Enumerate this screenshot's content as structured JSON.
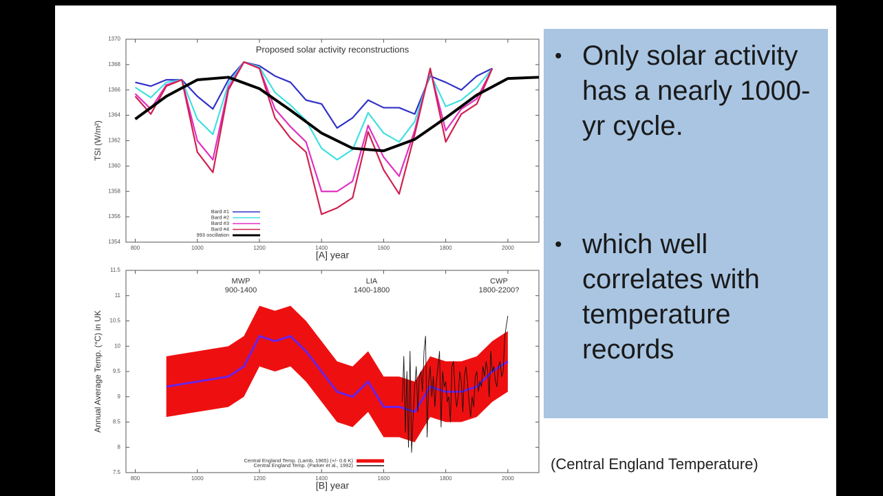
{
  "slide": {
    "bullets": [
      "Only solar activity has a nearly 1000-yr cycle.",
      "which well correlates with temperature records"
    ],
    "caption": "(Central England Temperature)"
  },
  "chart_data": [
    {
      "type": "line",
      "title": "Proposed solar activity reconstructions",
      "x_label": "[A]  year",
      "y_label": "TSI (W/m²)",
      "xlim": [
        770,
        2100
      ],
      "xticks": [
        800,
        1000,
        1200,
        1400,
        1600,
        1800,
        2000
      ],
      "ylim": [
        1354,
        1370
      ],
      "yticks": [
        1354,
        1356,
        1358,
        1360,
        1362,
        1364,
        1366,
        1368,
        1370
      ],
      "legend": "lower left",
      "series": [
        {
          "name": "Bard #1",
          "color": "#3030c8",
          "x": [
            800,
            850,
            900,
            950,
            1000,
            1050,
            1100,
            1150,
            1200,
            1250,
            1300,
            1350,
            1400,
            1450,
            1500,
            1550,
            1600,
            1650,
            1700,
            1750,
            1800,
            1850,
            1900,
            1950
          ],
          "values": [
            1366.6,
            1366.3,
            1366.8,
            1366.8,
            1365.5,
            1364.5,
            1366.8,
            1368.2,
            1367.9,
            1367.1,
            1366.6,
            1365.2,
            1364.9,
            1363.0,
            1363.8,
            1365.2,
            1364.6,
            1364.6,
            1364.1,
            1367.1,
            1366.6,
            1366.0,
            1367.1,
            1367.7
          ]
        },
        {
          "name": "Bard #2",
          "color": "#40e0e0",
          "x": [
            800,
            850,
            900,
            950,
            1000,
            1050,
            1100,
            1150,
            1200,
            1250,
            1300,
            1350,
            1400,
            1450,
            1500,
            1550,
            1600,
            1650,
            1700,
            1750,
            1800,
            1850,
            1900,
            1950
          ],
          "values": [
            1366.2,
            1365.4,
            1366.6,
            1366.8,
            1363.7,
            1362.5,
            1366.5,
            1368.2,
            1367.8,
            1365.8,
            1364.8,
            1363.6,
            1361.4,
            1360.5,
            1361.3,
            1364.2,
            1362.6,
            1361.9,
            1363.5,
            1367.3,
            1364.7,
            1365.2,
            1366.2,
            1367.7
          ]
        },
        {
          "name": "Bard #3",
          "color": "#e030c0",
          "x": [
            800,
            850,
            900,
            950,
            1000,
            1050,
            1100,
            1150,
            1200,
            1250,
            1300,
            1350,
            1400,
            1450,
            1500,
            1550,
            1600,
            1650,
            1700,
            1750,
            1800,
            1850,
            1900,
            1950
          ],
          "values": [
            1365.7,
            1364.5,
            1366.4,
            1366.8,
            1362.0,
            1360.5,
            1366.2,
            1368.2,
            1367.7,
            1364.5,
            1363.1,
            1361.9,
            1358.0,
            1358.0,
            1358.8,
            1363.2,
            1360.7,
            1359.2,
            1362.8,
            1367.6,
            1362.8,
            1364.5,
            1365.3,
            1367.7
          ]
        },
        {
          "name": "Bard #4",
          "color": "#d02050",
          "x": [
            800,
            850,
            900,
            950,
            1000,
            1050,
            1100,
            1150,
            1200,
            1250,
            1300,
            1350,
            1400,
            1450,
            1500,
            1550,
            1600,
            1650,
            1700,
            1750,
            1800,
            1850,
            1900,
            1950
          ],
          "values": [
            1365.5,
            1364.1,
            1366.3,
            1366.8,
            1361.1,
            1359.5,
            1366.0,
            1368.2,
            1367.7,
            1363.8,
            1362.2,
            1361.1,
            1356.2,
            1356.7,
            1357.5,
            1362.7,
            1359.7,
            1357.8,
            1362.5,
            1367.7,
            1361.9,
            1364.1,
            1364.9,
            1367.7
          ]
        },
        {
          "name": "993 oscillation",
          "color": "#000000",
          "x": [
            800,
            900,
            1000,
            1100,
            1200,
            1300,
            1400,
            1500,
            1600,
            1700,
            1800,
            1900,
            2000,
            2100
          ],
          "values": [
            1363.7,
            1365.5,
            1366.8,
            1367.0,
            1366.1,
            1364.4,
            1362.6,
            1361.4,
            1361.2,
            1362.1,
            1363.8,
            1365.6,
            1366.9,
            1367.0
          ]
        }
      ]
    },
    {
      "type": "line",
      "x_label": "[B]  year",
      "y_label": "Annual Average Temp.  (°C)  in UK",
      "xlim": [
        770,
        2100
      ],
      "xticks": [
        800,
        1000,
        1200,
        1400,
        1600,
        1800,
        2000
      ],
      "ylim": [
        7.5,
        11.5
      ],
      "yticks": [
        7.5,
        8,
        8.5,
        9,
        9.5,
        10,
        10.5,
        11,
        11.5
      ],
      "legend": "lower left",
      "annotations": [
        {
          "text": "MWP",
          "range": "900-1400"
        },
        {
          "text": "LIA",
          "range": "1400-1800"
        },
        {
          "text": "CWP",
          "range": "1800-2200?"
        }
      ],
      "series": [
        {
          "name": "Central England Temp. (Lamb, 1965) (+/- 0.6 K)",
          "color": "#ee1010",
          "line_color": "#6a22e8",
          "error": 0.6,
          "x": [
            900,
            1000,
            1100,
            1150,
            1200,
            1250,
            1300,
            1350,
            1400,
            1450,
            1500,
            1550,
            1600,
            1650,
            1700,
            1750,
            1800,
            1850,
            1900,
            1950,
            2000
          ],
          "values": [
            9.2,
            9.3,
            9.4,
            9.6,
            10.2,
            10.1,
            10.2,
            9.9,
            9.5,
            9.1,
            9.0,
            9.3,
            8.8,
            8.8,
            8.7,
            9.2,
            9.1,
            9.1,
            9.2,
            9.5,
            9.7
          ]
        },
        {
          "name": "Central England Temp. (Parker et al., 1992)",
          "color": "#111111",
          "x": [
            1660,
            1665,
            1670,
            1675,
            1680,
            1685,
            1690,
            1695,
            1700,
            1705,
            1710,
            1715,
            1720,
            1725,
            1730,
            1735,
            1740,
            1745,
            1750,
            1755,
            1760,
            1765,
            1770,
            1775,
            1780,
            1785,
            1790,
            1795,
            1800,
            1805,
            1810,
            1815,
            1820,
            1825,
            1830,
            1835,
            1840,
            1845,
            1850,
            1855,
            1860,
            1865,
            1870,
            1875,
            1880,
            1885,
            1890,
            1895,
            1900,
            1905,
            1910,
            1915,
            1920,
            1925,
            1930,
            1935,
            1940,
            1945,
            1950,
            1955,
            1960,
            1965,
            1970,
            1975,
            1980,
            1985,
            1990,
            1995,
            2000
          ],
          "values": [
            8.9,
            9.8,
            8.3,
            9.5,
            8.0,
            9.9,
            7.9,
            8.6,
            9.2,
            9.6,
            8.7,
            9.4,
            9.5,
            9.1,
            9.9,
            10.2,
            8.2,
            9.3,
            9.6,
            9.0,
            9.4,
            8.8,
            9.3,
            9.6,
            9.9,
            8.4,
            9.5,
            9.2,
            9.3,
            8.9,
            9.0,
            8.5,
            9.6,
            9.7,
            9.1,
            8.8,
            9.0,
            9.5,
            9.3,
            8.7,
            9.4,
            9.6,
            9.3,
            8.9,
            8.6,
            9.0,
            8.8,
            9.4,
            9.5,
            9.1,
            9.3,
            9.2,
            9.6,
            9.4,
            9.7,
            9.5,
            9.0,
            9.9,
            9.5,
            9.6,
            9.3,
            9.2,
            9.6,
            9.7,
            9.4,
            9.5,
            10.2,
            10.4,
            10.6
          ]
        }
      ]
    }
  ]
}
